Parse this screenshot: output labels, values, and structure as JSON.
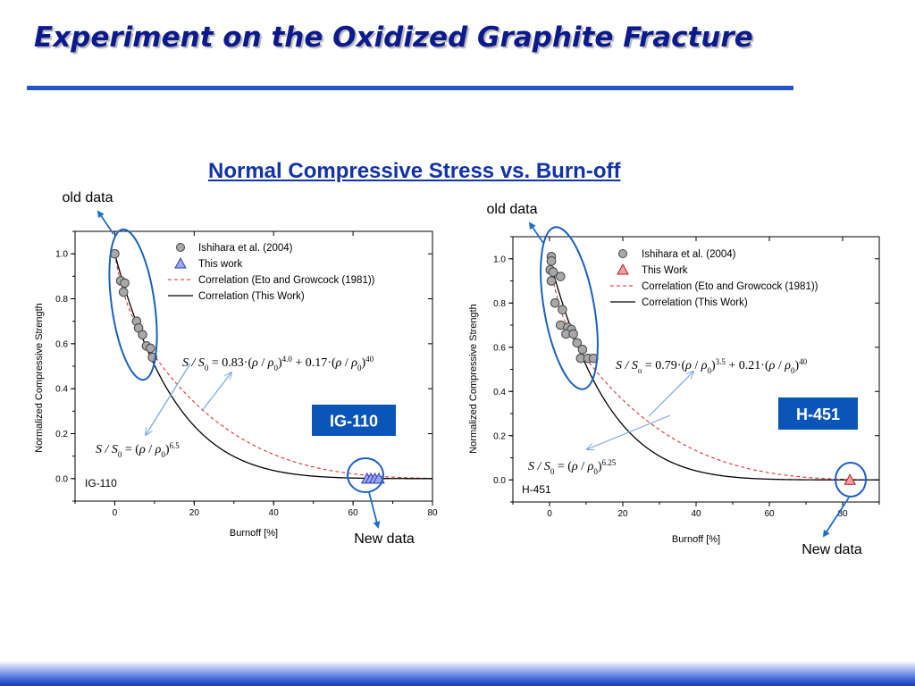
{
  "slide": {
    "title": "Experiment on the Oxidized Graphite Fracture",
    "subtitle": "Normal Compressive Stress vs. Burn-off"
  },
  "colors": {
    "title": "#0b1a8c",
    "subtitle": "#1233a8",
    "title_rule": "#2455c8",
    "callout_box": "#0a56b8",
    "ellipse": "#1c5fbf",
    "arrow": "#1d6fc8",
    "eto_curve": "#e02020",
    "this_work_curve": "#000000",
    "old_marker": "#a8a8a8",
    "ig_new_marker": "#9aa6f2",
    "h_new_marker": "#f0a0a0"
  },
  "chart_data": [
    {
      "type": "scatter",
      "label": "IG-110",
      "callout": "IG-110",
      "xlabel": "Burnoff [%]",
      "ylabel": "Normalized Compressive Strength",
      "xlim": [
        -10,
        80
      ],
      "ylim": [
        -0.1,
        1.1
      ],
      "xticks": [
        0,
        20,
        40,
        60,
        80
      ],
      "yticks": [
        0.0,
        0.2,
        0.4,
        0.6,
        0.8,
        1.0
      ],
      "grid": false,
      "legend_position": "top-right",
      "legend": [
        "Ishihara et al. (2004)",
        "This work",
        "Correlation (Eto and Growcock (1981))",
        "Correlation (This Work)"
      ],
      "equations": {
        "combined": {
          "lhs": "S / S",
          "lhs_sub": "0",
          "coef1": "0.83",
          "exp1": "4.0",
          "coef2": "0.17",
          "exp2": "40"
        },
        "single": {
          "lhs": "S / S",
          "lhs_sub": "0",
          "exp": "6.5"
        }
      },
      "annotations": {
        "old": "old data",
        "new": "New data"
      },
      "series": [
        {
          "name": "Ishihara et al. (2004)",
          "kind": "points",
          "marker": "circle",
          "x": [
            0,
            1.5,
            2.5,
            2.2,
            5.5,
            6,
            7,
            8,
            9,
            9.5
          ],
          "y": [
            1.0,
            0.88,
            0.87,
            0.83,
            0.7,
            0.67,
            0.64,
            0.59,
            0.58,
            0.54
          ]
        },
        {
          "name": "This work",
          "kind": "points",
          "marker": "triangle",
          "x": [
            63.5,
            64.5,
            65.5,
            66.5
          ],
          "y": [
            0.0,
            0.0,
            0.0,
            0.0
          ]
        },
        {
          "name": "Correlation (Eto and Growcock (1981))",
          "kind": "curve",
          "style": "dashed",
          "c1": 0.83,
          "e1": 4.0,
          "c2": 0.17,
          "e2": 40,
          "x_end": 80
        },
        {
          "name": "Correlation (This Work)",
          "kind": "curve",
          "style": "solid",
          "c1": 1.0,
          "e1": 6.5,
          "c2": 0,
          "e2": 40,
          "x_end": 80
        }
      ]
    },
    {
      "type": "scatter",
      "label": "H-451",
      "callout": "H-451",
      "xlabel": "Burnoff [%]",
      "ylabel": "Normalized Compressive Strength",
      "xlim": [
        -10,
        90
      ],
      "ylim": [
        -0.1,
        1.1
      ],
      "xticks": [
        0,
        20,
        40,
        60,
        80
      ],
      "yticks": [
        0.0,
        0.2,
        0.4,
        0.6,
        0.8,
        1.0
      ],
      "grid": false,
      "legend_position": "top-right",
      "legend": [
        "Ishihara et al. (2004)",
        "This Work",
        "Correlation (Eto and Growcock (1981))",
        "Correlation (This Work)"
      ],
      "equations": {
        "combined": {
          "lhs": "S / S",
          "lhs_sub": "o",
          "coef1": "0.79",
          "exp1": "3.5",
          "coef2": "0.21",
          "exp2": "40"
        },
        "single": {
          "lhs": "S / S",
          "lhs_sub": "0",
          "exp": "6.25"
        }
      },
      "annotations": {
        "old": "old data",
        "new": "New data"
      },
      "series": [
        {
          "name": "Ishihara et al. (2004)",
          "kind": "points",
          "marker": "circle",
          "x": [
            0.5,
            0.5,
            0.2,
            1.0,
            0.5,
            3.0,
            1.5,
            3.5,
            3.0,
            5.0,
            6.0,
            4.5,
            6.5,
            7.5,
            9.0,
            8.5,
            10.5,
            12.0
          ],
          "y": [
            1.01,
            0.99,
            0.95,
            0.94,
            0.9,
            0.92,
            0.8,
            0.77,
            0.7,
            0.69,
            0.68,
            0.66,
            0.66,
            0.62,
            0.59,
            0.55,
            0.55,
            0.55
          ]
        },
        {
          "name": "This Work",
          "kind": "points",
          "marker": "triangle",
          "x": [
            82
          ],
          "y": [
            0.0
          ]
        },
        {
          "name": "Correlation (Eto and Growcock (1981))",
          "kind": "curve",
          "style": "dashed",
          "c1": 0.79,
          "e1": 3.5,
          "c2": 0.21,
          "e2": 40,
          "x_end": 90
        },
        {
          "name": "Correlation (This Work)",
          "kind": "curve",
          "style": "solid",
          "c1": 1.0,
          "e1": 6.25,
          "c2": 0,
          "e2": 40,
          "x_end": 90
        }
      ]
    }
  ]
}
